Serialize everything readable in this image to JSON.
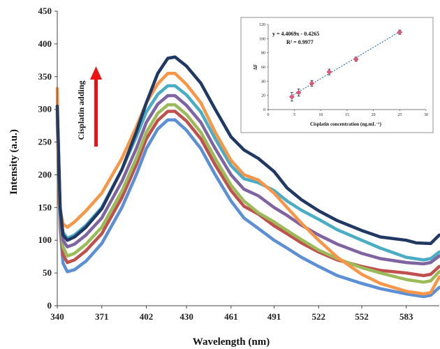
{
  "chart_data": [
    {
      "type": "line",
      "xlabel": "Wavelength (nm)",
      "ylabel": "Intensity (a.u.)",
      "xlim": [
        340,
        606
      ],
      "ylim": [
        0,
        450
      ],
      "xticks": [
        340,
        371,
        402,
        430,
        461,
        491,
        522,
        552,
        583
      ],
      "yticks": [
        0,
        50,
        100,
        150,
        200,
        250,
        300,
        350,
        400,
        450
      ],
      "annotation": "Cisplatin adding",
      "annotation_arrow_color": "#ee1111",
      "series": [
        {
          "color": "#5b8fd6",
          "points": [
            [
              340,
              280
            ],
            [
              342,
              120
            ],
            [
              344,
              65
            ],
            [
              347,
              52
            ],
            [
              352,
              55
            ],
            [
              360,
              68
            ],
            [
              371,
              95
            ],
            [
              385,
              150
            ],
            [
              395,
              200
            ],
            [
              402,
              240
            ],
            [
              410,
              270
            ],
            [
              417,
              284
            ],
            [
              422,
              284
            ],
            [
              430,
              268
            ],
            [
              440,
              240
            ],
            [
              450,
              200
            ],
            [
              461,
              160
            ],
            [
              470,
              134
            ],
            [
              480,
              118
            ],
            [
              491,
              100
            ],
            [
              500,
              88
            ],
            [
              510,
              74
            ],
            [
              522,
              60
            ],
            [
              535,
              46
            ],
            [
              552,
              34
            ],
            [
              565,
              26
            ],
            [
              583,
              18
            ],
            [
              595,
              14
            ],
            [
              600,
              16
            ],
            [
              606,
              28
            ]
          ]
        },
        {
          "color": "#c0504d",
          "points": [
            [
              340,
              290
            ],
            [
              342,
              130
            ],
            [
              344,
              78
            ],
            [
              347,
              66
            ],
            [
              352,
              70
            ],
            [
              360,
              84
            ],
            [
              371,
              110
            ],
            [
              385,
              165
            ],
            [
              395,
              215
            ],
            [
              402,
              255
            ],
            [
              410,
              283
            ],
            [
              417,
              297
            ],
            [
              422,
              297
            ],
            [
              430,
              282
            ],
            [
              440,
              255
            ],
            [
              450,
              215
            ],
            [
              461,
              176
            ],
            [
              470,
              152
            ],
            [
              480,
              140
            ],
            [
              491,
              122
            ],
            [
              500,
              110
            ],
            [
              510,
              96
            ],
            [
              522,
              82
            ],
            [
              535,
              70
            ],
            [
              552,
              60
            ],
            [
              565,
              54
            ],
            [
              583,
              50
            ],
            [
              595,
              46
            ],
            [
              600,
              48
            ],
            [
              606,
              60
            ]
          ]
        },
        {
          "color": "#9bbb59",
          "points": [
            [
              340,
              295
            ],
            [
              342,
              135
            ],
            [
              344,
              90
            ],
            [
              347,
              76
            ],
            [
              352,
              80
            ],
            [
              360,
              94
            ],
            [
              371,
              120
            ],
            [
              385,
              175
            ],
            [
              395,
              225
            ],
            [
              402,
              265
            ],
            [
              410,
              294
            ],
            [
              417,
              307
            ],
            [
              422,
              307
            ],
            [
              430,
              292
            ],
            [
              440,
              265
            ],
            [
              450,
              225
            ],
            [
              461,
              184
            ],
            [
              470,
              160
            ],
            [
              480,
              142
            ],
            [
              491,
              128
            ],
            [
              500,
              115
            ],
            [
              510,
              101
            ],
            [
              522,
              85
            ],
            [
              535,
              72
            ],
            [
              552,
              58
            ],
            [
              565,
              50
            ],
            [
              583,
              40
            ],
            [
              595,
              36
            ],
            [
              600,
              38
            ],
            [
              606,
              52
            ]
          ]
        },
        {
          "color": "#8064a2",
          "points": [
            [
              340,
              300
            ],
            [
              342,
              140
            ],
            [
              344,
              100
            ],
            [
              347,
              90
            ],
            [
              352,
              94
            ],
            [
              360,
              108
            ],
            [
              371,
              134
            ],
            [
              385,
              190
            ],
            [
              395,
              240
            ],
            [
              402,
              280
            ],
            [
              410,
              308
            ],
            [
              417,
              321
            ],
            [
              422,
              321
            ],
            [
              430,
              306
            ],
            [
              440,
              280
            ],
            [
              450,
              240
            ],
            [
              461,
              200
            ],
            [
              470,
              178
            ],
            [
              480,
              168
            ],
            [
              491,
              150
            ],
            [
              500,
              138
            ],
            [
              510,
              123
            ],
            [
              522,
              108
            ],
            [
              535,
              94
            ],
            [
              552,
              80
            ],
            [
              565,
              72
            ],
            [
              583,
              66
            ],
            [
              595,
              64
            ],
            [
              600,
              66
            ],
            [
              606,
              76
            ]
          ]
        },
        {
          "color": "#4bacc6",
          "points": [
            [
              340,
              305
            ],
            [
              342,
              145
            ],
            [
              344,
              112
            ],
            [
              347,
              103
            ],
            [
              352,
              108
            ],
            [
              360,
              123
            ],
            [
              371,
              150
            ],
            [
              385,
              208
            ],
            [
              395,
              258
            ],
            [
              402,
              296
            ],
            [
              410,
              323
            ],
            [
              417,
              336
            ],
            [
              422,
              336
            ],
            [
              430,
              322
            ],
            [
              440,
              296
            ],
            [
              450,
              255
            ],
            [
              461,
              214
            ],
            [
              470,
              194
            ],
            [
              480,
              188
            ],
            [
              491,
              176
            ],
            [
              500,
              160
            ],
            [
              510,
              146
            ],
            [
              522,
              132
            ],
            [
              535,
              116
            ],
            [
              552,
              100
            ],
            [
              565,
              88
            ],
            [
              583,
              74
            ],
            [
              595,
              70
            ],
            [
              600,
              72
            ],
            [
              606,
              82
            ]
          ]
        },
        {
          "color": "#f79646",
          "points": [
            [
              340,
              332
            ],
            [
              341,
              160
            ],
            [
              344,
              125
            ],
            [
              347,
              120
            ],
            [
              352,
              128
            ],
            [
              360,
              145
            ],
            [
              371,
              172
            ],
            [
              385,
              225
            ],
            [
              395,
              273
            ],
            [
              402,
              310
            ],
            [
              410,
              339
            ],
            [
              417,
              355
            ],
            [
              422,
              355
            ],
            [
              430,
              338
            ],
            [
              440,
              310
            ],
            [
              450,
              265
            ],
            [
              461,
              222
            ],
            [
              470,
              200
            ],
            [
              480,
              192
            ],
            [
              491,
              172
            ],
            [
              500,
              150
            ],
            [
              510,
              126
            ],
            [
              522,
              100
            ],
            [
              535,
              74
            ],
            [
              552,
              48
            ],
            [
              565,
              34
            ],
            [
              583,
              22
            ],
            [
              595,
              18
            ],
            [
              600,
              20
            ],
            [
              606,
              44
            ]
          ]
        },
        {
          "color": "#1f3864",
          "points": [
            [
              340,
              305
            ],
            [
              342,
              150
            ],
            [
              344,
              108
            ],
            [
              347,
              100
            ],
            [
              352,
              105
            ],
            [
              360,
              120
            ],
            [
              371,
              148
            ],
            [
              385,
              208
            ],
            [
              395,
              265
            ],
            [
              402,
              310
            ],
            [
              410,
              355
            ],
            [
              417,
              378
            ],
            [
              422,
              380
            ],
            [
              430,
              366
            ],
            [
              440,
              340
            ],
            [
              450,
              300
            ],
            [
              461,
              258
            ],
            [
              470,
              238
            ],
            [
              480,
              225
            ],
            [
              491,
              205
            ],
            [
              500,
              180
            ],
            [
              510,
              162
            ],
            [
              522,
              145
            ],
            [
              535,
              130
            ],
            [
              552,
              115
            ],
            [
              565,
              105
            ],
            [
              583,
              100
            ],
            [
              590,
              96
            ],
            [
              600,
              95
            ],
            [
              606,
              108
            ]
          ]
        }
      ]
    },
    {
      "type": "scatter",
      "xlabel": "Cisplatin concentration (ng.mL⁻¹)",
      "ylabel": "ΔF",
      "xlim": [
        0,
        30
      ],
      "ylim": [
        0,
        120
      ],
      "xticks": [
        0,
        5,
        10,
        15,
        20,
        25,
        30
      ],
      "yticks": [
        0,
        20,
        40,
        60,
        80,
        100,
        120
      ],
      "equation": "y = 4.4069x - 0.4265",
      "r_squared": "R² = 0.9977",
      "fit": {
        "slope": 4.4069,
        "intercept": -0.4265,
        "x_range": [
          4.3,
          25
        ]
      },
      "marker_color": "#e8557a",
      "trend_color": "#2e75b6",
      "points": [
        {
          "x": 4.5,
          "y": 18,
          "err": 6
        },
        {
          "x": 5.8,
          "y": 24,
          "err": 5
        },
        {
          "x": 8.3,
          "y": 37,
          "err": 4
        },
        {
          "x": 11.6,
          "y": 53,
          "err": 4
        },
        {
          "x": 16.7,
          "y": 71,
          "err": 3
        },
        {
          "x": 25,
          "y": 109,
          "err": 3
        }
      ]
    }
  ]
}
